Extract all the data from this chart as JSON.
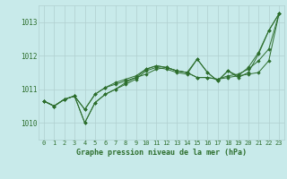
{
  "title": "Graphe pression niveau de la mer (hPa)",
  "background_color": "#c8eaea",
  "grid_color": "#b0d0d0",
  "line_color": "#2d6e2d",
  "marker_color": "#2d6e2d",
  "x_labels": [
    "0",
    "1",
    "2",
    "3",
    "4",
    "5",
    "6",
    "7",
    "8",
    "9",
    "10",
    "11",
    "12",
    "13",
    "14",
    "15",
    "16",
    "17",
    "18",
    "19",
    "20",
    "21",
    "22",
    "23"
  ],
  "ylim": [
    1009.5,
    1013.5
  ],
  "yticks": [
    1010,
    1011,
    1012,
    1013
  ],
  "series": [
    [
      1010.65,
      1010.5,
      1010.7,
      1010.8,
      1010.4,
      1010.85,
      1011.05,
      1011.15,
      1011.25,
      1011.35,
      1011.45,
      1011.6,
      1011.65,
      1011.55,
      1011.5,
      1011.35,
      1011.35,
      1011.3,
      1011.35,
      1011.4,
      1011.45,
      1011.5,
      1011.85,
      1013.25
    ],
    [
      1010.65,
      1010.5,
      1010.7,
      1010.8,
      1010.0,
      1010.6,
      1010.85,
      1011.0,
      1011.15,
      1011.3,
      1011.55,
      1011.65,
      1011.6,
      1011.5,
      1011.45,
      1011.9,
      1011.5,
      1011.25,
      1011.55,
      1011.35,
      1011.5,
      1012.05,
      1012.75,
      1013.25
    ],
    [
      1010.65,
      1010.5,
      1010.7,
      1010.8,
      1010.4,
      1010.85,
      1011.05,
      1011.2,
      1011.3,
      1011.4,
      1011.6,
      1011.7,
      1011.65,
      1011.55,
      1011.5,
      1011.35,
      1011.35,
      1011.3,
      1011.4,
      1011.45,
      1011.6,
      1011.85,
      1012.2,
      1013.25
    ],
    [
      1010.65,
      1010.5,
      1010.7,
      1010.8,
      1010.0,
      1010.6,
      1010.85,
      1011.0,
      1011.2,
      1011.35,
      1011.6,
      1011.7,
      1011.65,
      1011.55,
      1011.5,
      1011.9,
      1011.5,
      1011.25,
      1011.55,
      1011.4,
      1011.65,
      1012.1,
      1012.75,
      1013.25
    ]
  ]
}
